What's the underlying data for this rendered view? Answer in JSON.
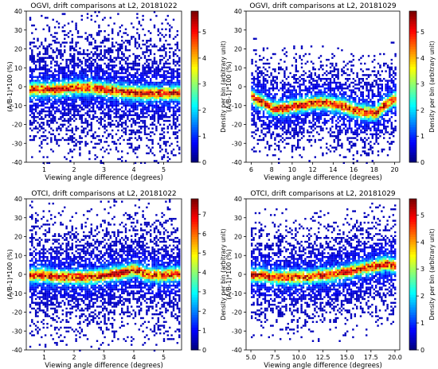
{
  "chart_data": [
    {
      "type": "heatmap",
      "title": "OGVI, drift comparisons at L2, 20181022",
      "xlabel": "Viewing angle difference (degrees)",
      "ylabel": "(A/B-1)*100 (%)",
      "colorbar_label": "Density per bin (arbitrary unit)",
      "xlim": [
        0.4,
        5.6
      ],
      "ylim": [
        -40,
        40
      ],
      "xticks": [
        1,
        2,
        3,
        4,
        5
      ],
      "yticks": [
        -40,
        -30,
        -20,
        -10,
        0,
        10,
        20,
        30,
        40
      ],
      "cbar_range": [
        0,
        5.8
      ],
      "cbar_ticks": [
        0,
        1,
        2,
        3,
        4,
        5
      ],
      "ridge": {
        "x": [
          0.5,
          1.0,
          1.5,
          2.0,
          2.5,
          3.0,
          3.5,
          4.0,
          4.5,
          5.0,
          5.5
        ],
        "y": [
          -1,
          -1,
          -1,
          0,
          0,
          -1,
          -2,
          -3,
          -3,
          -3,
          -3
        ]
      }
    },
    {
      "type": "heatmap",
      "title": "OGVI, drift comparisons at L2, 20181029",
      "xlabel": "Viewing angle difference (degrees)",
      "ylabel": "(A/B-1)*100 (%)",
      "colorbar_label": "Density per bin (arbitrary unit)",
      "xlim": [
        5.5,
        20.5
      ],
      "ylim": [
        -40,
        40
      ],
      "xticks": [
        6,
        8,
        10,
        12,
        14,
        16,
        18,
        20
      ],
      "yticks": [
        -40,
        -30,
        -20,
        -10,
        0,
        10,
        20,
        30,
        40
      ],
      "cbar_range": [
        0,
        5.8
      ],
      "cbar_ticks": [
        0,
        1,
        2,
        3,
        4,
        5
      ],
      "ridge": {
        "x": [
          6,
          7,
          8,
          9,
          10,
          11,
          12,
          13,
          14,
          15,
          16,
          17,
          18,
          19,
          20
        ],
        "y": [
          -5,
          -8,
          -11,
          -11,
          -10,
          -9,
          -8,
          -8,
          -9,
          -10,
          -12,
          -13,
          -14,
          -9,
          -6
        ]
      }
    },
    {
      "type": "heatmap",
      "title": "OTCI, drift comparisons at L2, 20181022",
      "xlabel": "Viewing angle difference (degrees)",
      "ylabel": "(A/B-1)*100 (%)",
      "colorbar_label": "Density per bin (arbitrary unit)",
      "xlim": [
        0.4,
        5.6
      ],
      "ylim": [
        -40,
        40
      ],
      "xticks": [
        1,
        2,
        3,
        4,
        5
      ],
      "yticks": [
        -40,
        -30,
        -20,
        -10,
        0,
        10,
        20,
        30,
        40
      ],
      "cbar_range": [
        0,
        7.8
      ],
      "cbar_ticks": [
        0,
        1,
        2,
        3,
        4,
        5,
        6,
        7
      ],
      "ridge": {
        "x": [
          0.5,
          1.0,
          1.5,
          2.0,
          2.5,
          3.0,
          3.5,
          4.0,
          4.5,
          5.0,
          5.5
        ],
        "y": [
          0,
          0,
          -1,
          -1,
          -1,
          0,
          1,
          3,
          0,
          0,
          1
        ]
      }
    },
    {
      "type": "heatmap",
      "title": "OTCI, drift comparisons at L2, 20181029",
      "xlabel": "Viewing angle difference (degrees)",
      "ylabel": "(A/B-1)*100 (%)",
      "colorbar_label": "Density per bin (arbitrary unit)",
      "xlim": [
        4.5,
        20.5
      ],
      "ylim": [
        -40,
        40
      ],
      "xticks": [
        5.0,
        7.5,
        10.0,
        12.5,
        15.0,
        17.5,
        20.0
      ],
      "xtick_labels": [
        "5.0",
        "7.5",
        "10.0",
        "12.5",
        "15.0",
        "17.5",
        "20.0"
      ],
      "yticks": [
        -40,
        -30,
        -20,
        -10,
        0,
        10,
        20,
        30,
        40
      ],
      "cbar_range": [
        0,
        5.6
      ],
      "cbar_ticks": [
        0,
        1,
        2,
        3,
        4,
        5
      ],
      "ridge": {
        "x": [
          5,
          6,
          7,
          8,
          9,
          10,
          11,
          12,
          13,
          14,
          15,
          16,
          17,
          18,
          19,
          20
        ],
        "y": [
          0,
          0,
          -1,
          -1,
          -1,
          -1,
          -1,
          0,
          0,
          1,
          2,
          3,
          4,
          5,
          6,
          5
        ]
      }
    }
  ]
}
